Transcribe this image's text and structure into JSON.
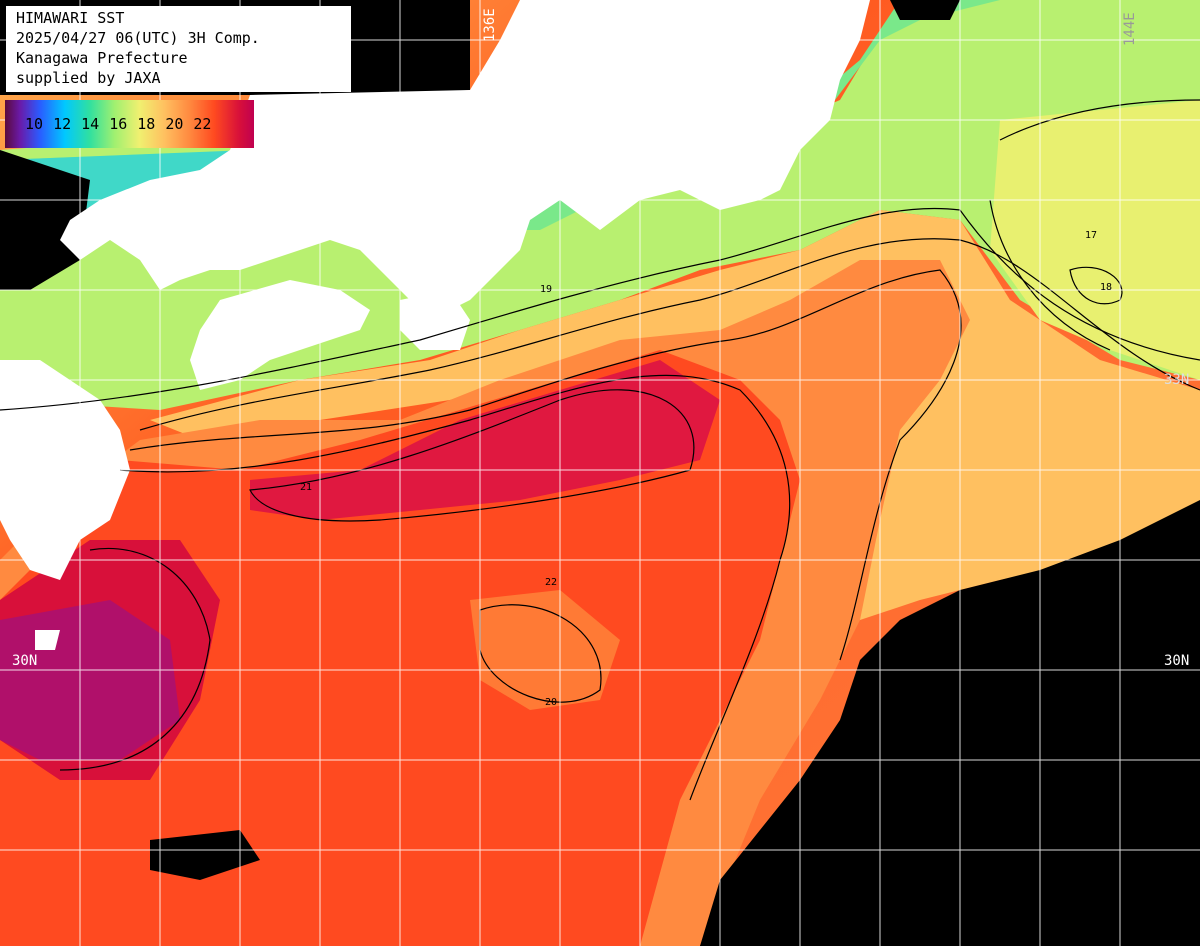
{
  "header": {
    "line1": "HIMAWARI SST",
    "line2": "2025/04/27 06(UTC) 3H Comp.",
    "line3": "Kanagawa Prefecture",
    "line4": "supplied by JAXA"
  },
  "legend": {
    "labels": [
      "10",
      "12",
      "14",
      "16",
      "18",
      "20",
      "22"
    ]
  },
  "grid_labels": {
    "lon_136": "136E",
    "lon_144": "144E",
    "lat_33_right": "33N",
    "lat_30_left": "30N",
    "lat_30_right": "30N"
  },
  "contour_labels": [
    "17",
    "18",
    "19",
    "20",
    "21",
    "22"
  ],
  "colors": {
    "land": "#ffffff",
    "no_data": "#000000",
    "sst_10": "#5a0a3c",
    "sst_14": "#00c8ff",
    "sst_16": "#a0f070",
    "sst_18": "#f0f070",
    "sst_19": "#ffc060",
    "sst_20": "#ff8a40",
    "sst_21": "#ff4a20",
    "sst_22": "#d8103a",
    "grid": "#ffffff"
  }
}
